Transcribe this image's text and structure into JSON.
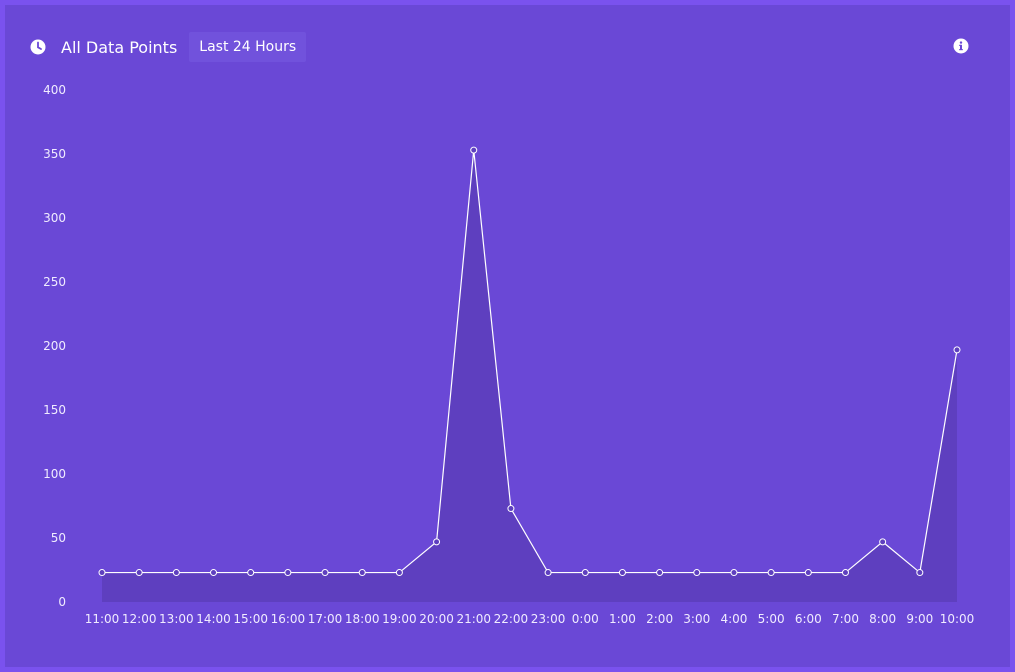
{
  "header": {
    "title": "All Data Points",
    "range_button": "Last 24 Hours",
    "clock_icon": "clock-icon",
    "info_icon": "info-icon"
  },
  "colors": {
    "frame": "#7a52ee",
    "panel": "#6a48d6",
    "area_fill": "#5e3fbf",
    "line": "#ffffff"
  },
  "chart_data": {
    "type": "area",
    "x": [
      "11:00",
      "12:00",
      "13:00",
      "14:00",
      "15:00",
      "16:00",
      "17:00",
      "18:00",
      "19:00",
      "20:00",
      "21:00",
      "22:00",
      "23:00",
      "0:00",
      "1:00",
      "2:00",
      "3:00",
      "4:00",
      "5:00",
      "6:00",
      "7:00",
      "8:00",
      "9:00",
      "10:00"
    ],
    "series": [
      {
        "values": [
          23,
          23,
          23,
          23,
          23,
          23,
          23,
          23,
          23,
          47,
          353,
          73,
          23,
          23,
          23,
          23,
          23,
          23,
          23,
          23,
          23,
          47,
          23,
          197
        ]
      }
    ],
    "yticks": [
      0,
      50,
      100,
      150,
      200,
      250,
      300,
      350,
      400
    ],
    "ylim": [
      0,
      400
    ],
    "grid": false,
    "legend": "none"
  }
}
